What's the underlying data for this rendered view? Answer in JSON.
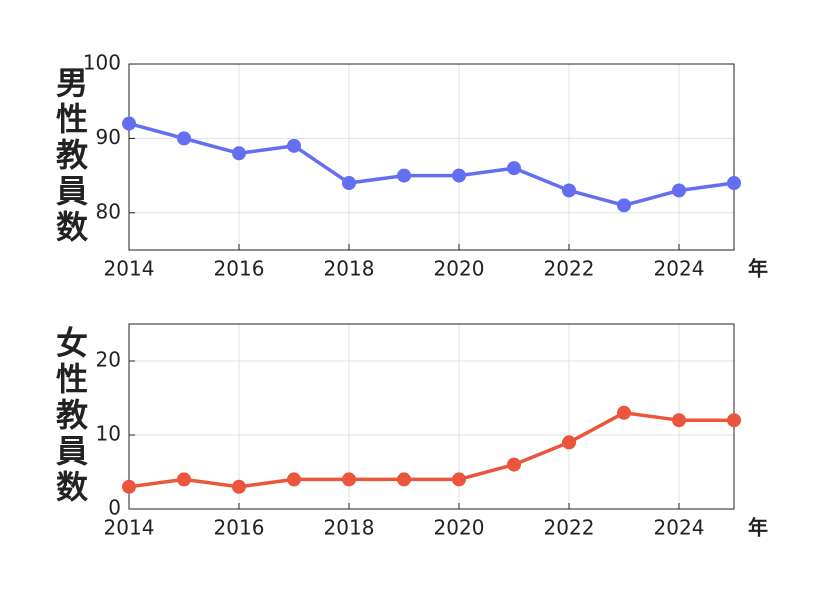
{
  "chart_data": [
    {
      "type": "line",
      "ylabel": "男性教員数",
      "xlabel": "年",
      "x": [
        2014,
        2015,
        2016,
        2017,
        2018,
        2019,
        2020,
        2021,
        2022,
        2023,
        2024,
        2025
      ],
      "values": [
        92,
        90,
        88,
        89,
        84,
        85,
        85,
        86,
        83,
        81,
        83,
        84
      ],
      "color": "#636ef0",
      "xlim": [
        2014,
        2025
      ],
      "xticks": [
        2014,
        2016,
        2018,
        2020,
        2022,
        2024
      ],
      "ylim": [
        75,
        100
      ],
      "yticks": [
        80,
        90,
        100
      ],
      "grid": true
    },
    {
      "type": "line",
      "ylabel": "女性教員数",
      "xlabel": "年",
      "x": [
        2014,
        2015,
        2016,
        2017,
        2018,
        2019,
        2020,
        2021,
        2022,
        2023,
        2024,
        2025
      ],
      "values": [
        3,
        4,
        3,
        4,
        4,
        4,
        4,
        6,
        9,
        13,
        12,
        12
      ],
      "color": "#ea553b",
      "xlim": [
        2014,
        2025
      ],
      "xticks": [
        2014,
        2016,
        2018,
        2020,
        2022,
        2024
      ],
      "ylim": [
        0,
        25
      ],
      "yticks": [
        0,
        10,
        20
      ],
      "grid": true
    }
  ]
}
